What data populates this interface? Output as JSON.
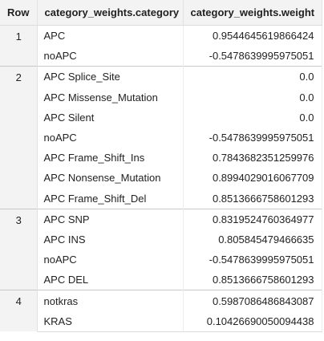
{
  "table": {
    "headers": {
      "row": "Row",
      "category": "category_weights.category",
      "weight": "category_weights.weight"
    },
    "groups": [
      {
        "row": "1",
        "entries": [
          {
            "category": "APC",
            "weight": "0.9544645619866424"
          },
          {
            "category": "noAPC",
            "weight": "-0.5478639995975051"
          }
        ]
      },
      {
        "row": "2",
        "entries": [
          {
            "category": "APC Splice_Site",
            "weight": "0.0"
          },
          {
            "category": "APC Missense_Mutation",
            "weight": "0.0"
          },
          {
            "category": "APC Silent",
            "weight": "0.0"
          },
          {
            "category": "noAPC",
            "weight": "-0.5478639995975051"
          },
          {
            "category": "APC Frame_Shift_Ins",
            "weight": "0.7843682351259976"
          },
          {
            "category": "APC Nonsense_Mutation",
            "weight": "0.8994029016067709"
          },
          {
            "category": "APC Frame_Shift_Del",
            "weight": "0.8513666758601293"
          }
        ]
      },
      {
        "row": "3",
        "entries": [
          {
            "category": "APC SNP",
            "weight": "0.8319524760364977"
          },
          {
            "category": "APC INS",
            "weight": "0.805845479466635"
          },
          {
            "category": "noAPC",
            "weight": "-0.5478639995975051"
          },
          {
            "category": "APC DEL",
            "weight": "0.8513666758601293"
          }
        ]
      },
      {
        "row": "4",
        "entries": [
          {
            "category": "notkras",
            "weight": "0.5987086486843087"
          },
          {
            "category": "KRAS",
            "weight": "0.10426690050094438"
          }
        ]
      }
    ]
  }
}
